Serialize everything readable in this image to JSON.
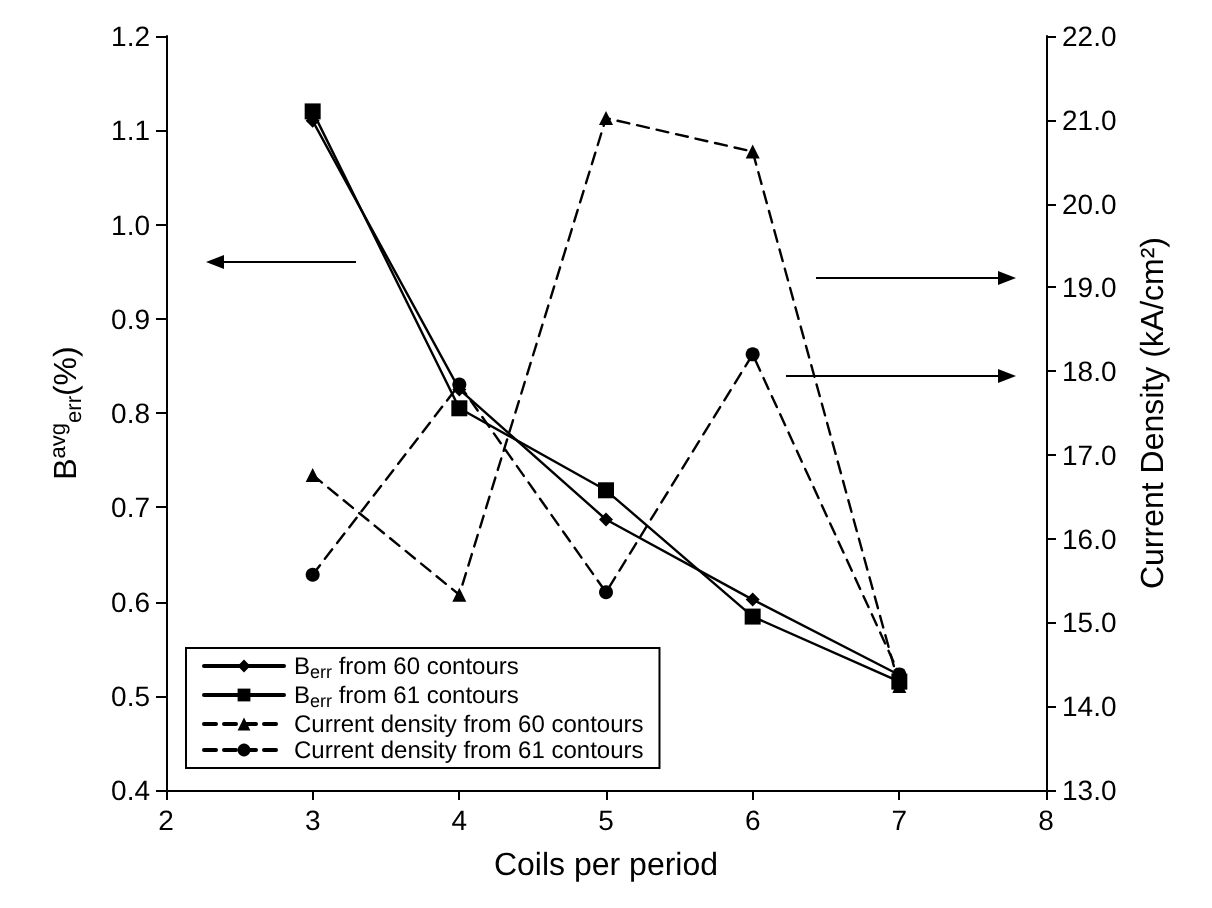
{
  "chart_data": {
    "type": "line",
    "xlabel": "Coils per period",
    "ylabel": "B$^{avg}$$_{err}$(%)",
    "y2label": "Current Density (kA/cm²)",
    "x": [
      3,
      4,
      5,
      6,
      7
    ],
    "xlim": [
      2,
      8
    ],
    "xticks": [
      2,
      3,
      4,
      5,
      6,
      7,
      8
    ],
    "ylim": [
      0.4,
      1.2
    ],
    "yticks": [
      {
        "value": 0.4,
        "label": "0.4"
      },
      {
        "value": 0.5,
        "label": "0.5"
      },
      {
        "value": 0.6,
        "label": "0.6"
      },
      {
        "value": 0.7,
        "label": "0.7"
      },
      {
        "value": 0.8,
        "label": "0.8"
      },
      {
        "value": 0.9,
        "label": "0.9"
      },
      {
        "value": 1,
        "label": "1.0"
      },
      {
        "value": 1.1,
        "label": "1.1"
      },
      {
        "value": 1.2,
        "label": "1.2"
      }
    ],
    "y2lim": [
      13,
      22
    ],
    "y2ticks": [
      {
        "value": 13,
        "label": "13.0"
      },
      {
        "value": 14,
        "label": "14.0"
      },
      {
        "value": 15,
        "label": "15.0"
      },
      {
        "value": 16,
        "label": "16.0"
      },
      {
        "value": 17,
        "label": "17.0"
      },
      {
        "value": 18,
        "label": "18.0"
      },
      {
        "value": 19,
        "label": "19.0"
      },
      {
        "value": 20,
        "label": "20.0"
      },
      {
        "value": 21,
        "label": "21.0"
      },
      {
        "value": 22,
        "label": "22.0"
      }
    ],
    "grid": false,
    "legend": "bottom left",
    "series": [
      {
        "name": "B$_{err}$ from 60 contours",
        "color": "#000000",
        "marker": "diamond",
        "line_style": "solid",
        "values": [
          1.11,
          0.825,
          0.687,
          0.602,
          0.522
        ]
      },
      {
        "name": "B$_{err}$ from 61 contours",
        "color": "#000000",
        "marker": "square",
        "line_style": "solid",
        "values": [
          1.12,
          0.805,
          0.718,
          0.584,
          0.515
        ]
      },
      {
        "name": "Current density from 60 contours",
        "color": "#000000",
        "marker": "triangle",
        "line_style": "dashed",
        "axis": "y2",
        "values": [
          16.76,
          15.33,
          21.02,
          20.62,
          14.24
        ]
      },
      {
        "name": "Current density from 61 contours",
        "color": "#000000",
        "marker": "circle",
        "line_style": "dashed",
        "axis": "y2",
        "values": [
          15.57,
          17.84,
          15.36,
          18.2,
          14.38
        ]
      }
    ]
  }
}
